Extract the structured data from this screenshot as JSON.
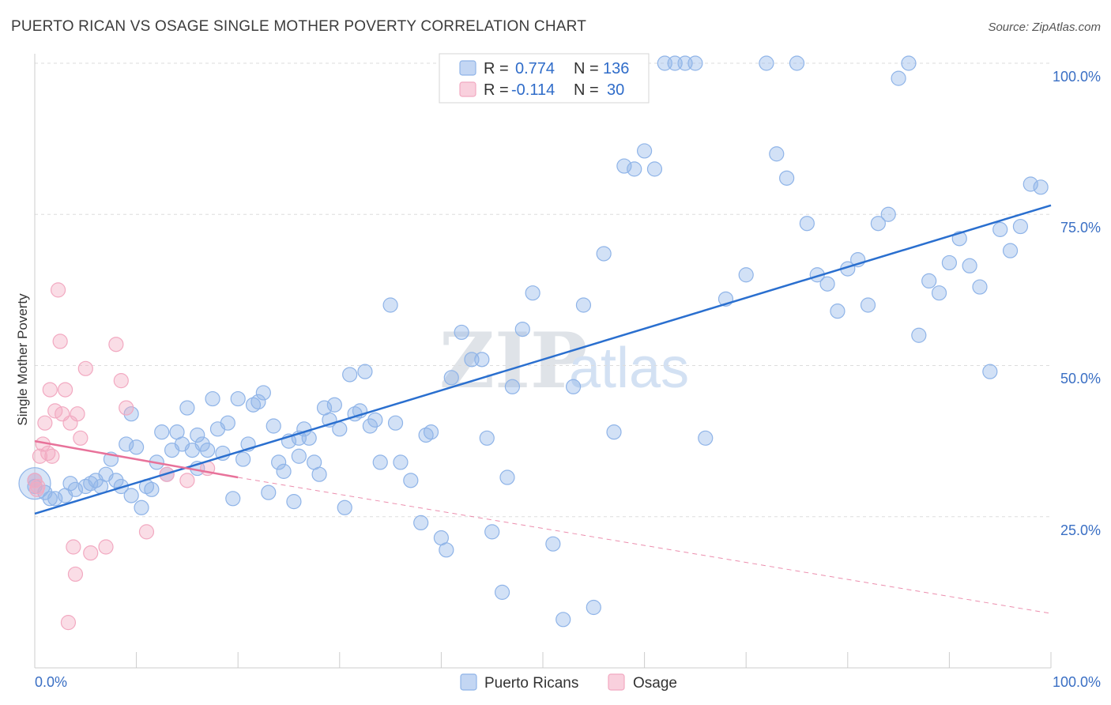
{
  "chart_data": {
    "type": "scatter",
    "title": "PUERTO RICAN VS OSAGE SINGLE MOTHER POVERTY CORRELATION CHART",
    "source": "Source: ZipAtlas.com",
    "ylabel": "Single Mother Poverty",
    "xlabel": "",
    "xlim": [
      0,
      100
    ],
    "ylim": [
      0,
      100
    ],
    "x_tick_labels": [
      "0.0%",
      "100.0%"
    ],
    "y_tick_labels": [
      "25.0%",
      "50.0%",
      "75.0%",
      "100.0%"
    ],
    "y_ticks": [
      25,
      50,
      75,
      100
    ],
    "watermark": {
      "part1": "ZIP",
      "part2": "atlas"
    },
    "legend": [
      {
        "r_label": "R =",
        "r_value": "0.774",
        "n_label": "N =",
        "n_value": "136"
      },
      {
        "r_label": "R =",
        "r_value": "-0.114",
        "n_label": "N =",
        "n_value": "30"
      }
    ],
    "series": [
      {
        "name": "Puerto Ricans",
        "color": "#8fb4e8",
        "line_color": "#2a6fcf",
        "trend": {
          "x0": 0,
          "y0": 25.5,
          "x1": 100,
          "y1": 76.5
        },
        "points": [
          [
            0,
            30
          ],
          [
            0,
            31
          ],
          [
            1,
            29
          ],
          [
            1.5,
            28
          ],
          [
            2,
            28
          ],
          [
            3,
            28.5
          ],
          [
            3.5,
            30.5
          ],
          [
            4,
            29.5
          ],
          [
            5,
            30
          ],
          [
            5.5,
            30.5
          ],
          [
            6,
            31
          ],
          [
            6.5,
            30
          ],
          [
            7,
            32
          ],
          [
            7.5,
            34.5
          ],
          [
            8,
            31
          ],
          [
            8.5,
            30
          ],
          [
            9,
            37
          ],
          [
            9.5,
            28.5
          ],
          [
            10,
            36.5
          ],
          [
            10.5,
            26.5
          ],
          [
            11,
            30
          ],
          [
            11.5,
            29.5
          ],
          [
            12,
            34
          ],
          [
            12.5,
            39
          ],
          [
            13,
            32
          ],
          [
            13.5,
            36
          ],
          [
            14,
            39
          ],
          [
            14.5,
            37
          ],
          [
            15,
            43
          ],
          [
            15.5,
            36
          ],
          [
            16,
            38.5
          ],
          [
            16.5,
            37
          ],
          [
            17,
            36
          ],
          [
            17.5,
            44.5
          ],
          [
            18,
            39.5
          ],
          [
            18.5,
            35.5
          ],
          [
            19,
            40.5
          ],
          [
            19.5,
            28
          ],
          [
            20,
            44.5
          ],
          [
            20.5,
            34.5
          ],
          [
            21,
            37
          ],
          [
            21.5,
            43.5
          ],
          [
            22,
            44
          ],
          [
            22.5,
            45.5
          ],
          [
            23,
            29
          ],
          [
            23.5,
            40
          ],
          [
            24,
            34
          ],
          [
            24.5,
            32.5
          ],
          [
            25,
            37.5
          ],
          [
            25.5,
            27.5
          ],
          [
            26,
            38
          ],
          [
            26.5,
            39.5
          ],
          [
            27,
            38
          ],
          [
            27.5,
            34
          ],
          [
            28,
            32
          ],
          [
            28.5,
            43
          ],
          [
            29,
            41
          ],
          [
            29.5,
            43.5
          ],
          [
            30,
            39.5
          ],
          [
            30.5,
            26.5
          ],
          [
            31,
            48.5
          ],
          [
            31.5,
            42
          ],
          [
            32,
            42.5
          ],
          [
            32.5,
            49
          ],
          [
            33,
            40
          ],
          [
            33.5,
            41
          ],
          [
            34,
            34
          ],
          [
            35,
            60
          ],
          [
            35.5,
            40.5
          ],
          [
            36,
            34
          ],
          [
            37,
            31
          ],
          [
            38,
            24
          ],
          [
            38.5,
            38.5
          ],
          [
            39,
            39
          ],
          [
            40,
            21.5
          ],
          [
            40.5,
            19.5
          ],
          [
            41,
            48
          ],
          [
            42,
            55.5
          ],
          [
            43,
            51
          ],
          [
            44,
            51
          ],
          [
            44.5,
            38
          ],
          [
            45,
            22.5
          ],
          [
            46,
            12.5
          ],
          [
            46.5,
            31.5
          ],
          [
            47,
            46.5
          ],
          [
            48,
            56
          ],
          [
            49,
            62
          ],
          [
            51,
            20.5
          ],
          [
            53,
            46.5
          ],
          [
            54,
            60
          ],
          [
            56,
            68.5
          ],
          [
            57,
            39
          ],
          [
            58,
            83
          ],
          [
            59,
            82.5
          ],
          [
            60,
            85.5
          ],
          [
            61,
            82.5
          ],
          [
            62,
            100
          ],
          [
            63,
            100
          ],
          [
            64,
            100
          ],
          [
            65,
            100
          ],
          [
            66,
            38
          ],
          [
            68,
            61
          ],
          [
            70,
            65
          ],
          [
            72,
            100
          ],
          [
            73,
            85
          ],
          [
            74,
            81
          ],
          [
            76,
            73.5
          ],
          [
            77,
            65
          ],
          [
            78,
            63.5
          ],
          [
            79,
            59
          ],
          [
            80,
            66
          ],
          [
            81,
            67.5
          ],
          [
            82,
            60
          ],
          [
            83,
            73.5
          ],
          [
            84,
            75
          ],
          [
            85,
            97.5
          ],
          [
            86,
            100
          ],
          [
            87,
            55
          ],
          [
            88,
            64
          ],
          [
            89,
            62
          ],
          [
            90,
            67
          ],
          [
            91,
            71
          ],
          [
            92,
            66.5
          ],
          [
            93,
            63
          ],
          [
            94,
            49
          ],
          [
            95,
            72.5
          ],
          [
            96,
            69
          ],
          [
            97,
            73
          ],
          [
            98,
            80
          ],
          [
            99,
            79.5
          ],
          [
            9.5,
            42
          ],
          [
            16,
            33
          ],
          [
            26,
            35
          ],
          [
            52,
            8
          ],
          [
            55,
            10
          ],
          [
            75,
            100
          ]
        ]
      },
      {
        "name": "Osage",
        "color": "#f2a9c1",
        "line_color": "#e8729a",
        "trend": {
          "x0": 0,
          "y0": 37.5,
          "x1": 20,
          "y1": 31.5
        },
        "dashed_trend": {
          "x0": 20,
          "y0": 31.5,
          "x1": 100,
          "y1": 9
        },
        "points": [
          [
            0,
            31
          ],
          [
            0.3,
            30
          ],
          [
            0.5,
            35
          ],
          [
            0.8,
            37
          ],
          [
            1,
            40.5
          ],
          [
            1.3,
            35.5
          ],
          [
            1.5,
            46
          ],
          [
            1.7,
            35
          ],
          [
            2,
            42.5
          ],
          [
            2.3,
            62.5
          ],
          [
            2.5,
            54
          ],
          [
            2.7,
            42
          ],
          [
            3,
            46
          ],
          [
            3.3,
            7.5
          ],
          [
            3.5,
            40.5
          ],
          [
            3.8,
            20
          ],
          [
            4,
            15.5
          ],
          [
            4.2,
            42
          ],
          [
            4.5,
            38
          ],
          [
            5,
            49.5
          ],
          [
            5.5,
            19
          ],
          [
            7,
            20
          ],
          [
            8,
            53.5
          ],
          [
            8.5,
            47.5
          ],
          [
            9,
            43
          ],
          [
            11,
            22.5
          ],
          [
            13,
            32
          ],
          [
            15,
            31
          ],
          [
            17,
            33
          ],
          [
            0.2,
            29.5
          ]
        ]
      }
    ]
  }
}
